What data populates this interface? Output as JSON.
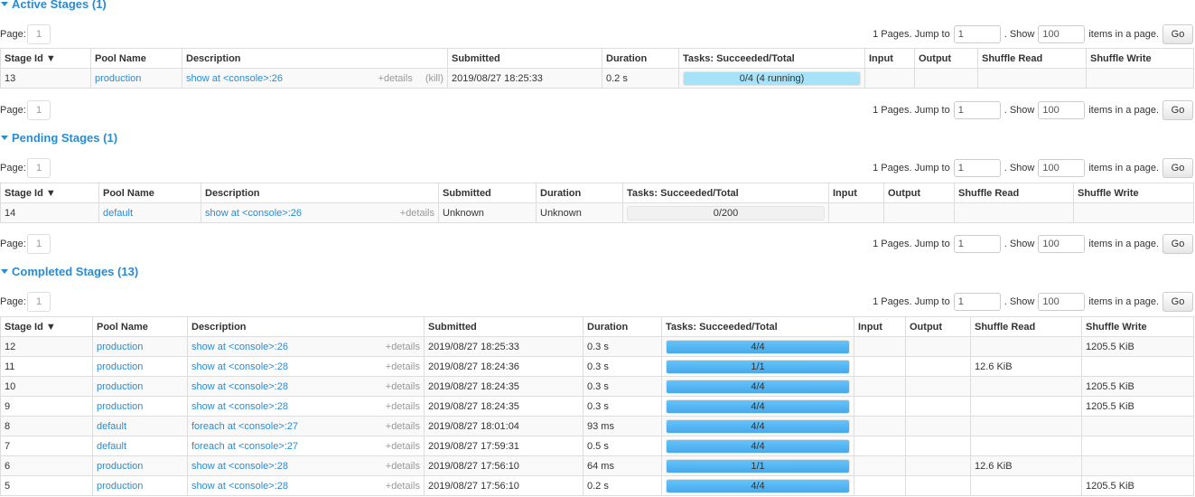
{
  "pager": {
    "page_label": "Page:",
    "page": "1",
    "pages_text": "1 Pages. Jump to",
    "jump": "1",
    "show_text": ". Show",
    "show": "100",
    "items_text": "items in a page.",
    "go": "Go"
  },
  "colors": {
    "link": "#2a8bd1",
    "bar_complete": "#4aa8ea",
    "bar_running": "#a6e3f8"
  },
  "columns": [
    "Stage Id ▼",
    "Pool Name",
    "Description",
    "Submitted",
    "Duration",
    "Tasks: Succeeded/Total",
    "Input",
    "Output",
    "Shuffle Read",
    "Shuffle Write"
  ],
  "details_label": "+details",
  "kill_label": "(kill)",
  "sections": [
    {
      "title": "Active Stages (1)",
      "rows": [
        {
          "id": "13",
          "pool": "production",
          "desc": "show at <console>:26",
          "kill": true,
          "submitted": "2019/08/27 18:25:33",
          "duration": "0.2 s",
          "tasks": "0/4 (4 running)",
          "succeeded": 0,
          "running": 4,
          "total": 4,
          "input": "",
          "output": "",
          "shuffle_read": "",
          "shuffle_write": ""
        }
      ]
    },
    {
      "title": "Pending Stages (1)",
      "rows": [
        {
          "id": "14",
          "pool": "default",
          "desc": "show at <console>:26",
          "submitted": "Unknown",
          "duration": "Unknown",
          "tasks": "0/200",
          "succeeded": 0,
          "running": 0,
          "total": 200,
          "input": "",
          "output": "",
          "shuffle_read": "",
          "shuffle_write": ""
        }
      ]
    },
    {
      "title": "Completed Stages (13)",
      "rows": [
        {
          "id": "12",
          "pool": "production",
          "desc": "show at <console>:26",
          "submitted": "2019/08/27 18:25:33",
          "duration": "0.3 s",
          "tasks": "4/4",
          "succeeded": 4,
          "running": 0,
          "total": 4,
          "input": "",
          "output": "",
          "shuffle_read": "",
          "shuffle_write": "1205.5 KiB"
        },
        {
          "id": "11",
          "pool": "production",
          "desc": "show at <console>:28",
          "submitted": "2019/08/27 18:24:36",
          "duration": "0.3 s",
          "tasks": "1/1",
          "succeeded": 1,
          "running": 0,
          "total": 1,
          "input": "",
          "output": "",
          "shuffle_read": "12.6 KiB",
          "shuffle_write": ""
        },
        {
          "id": "10",
          "pool": "production",
          "desc": "show at <console>:28",
          "submitted": "2019/08/27 18:24:35",
          "duration": "0.3 s",
          "tasks": "4/4",
          "succeeded": 4,
          "running": 0,
          "total": 4,
          "input": "",
          "output": "",
          "shuffle_read": "",
          "shuffle_write": "1205.5 KiB"
        },
        {
          "id": "9",
          "pool": "production",
          "desc": "show at <console>:28",
          "submitted": "2019/08/27 18:24:35",
          "duration": "0.3 s",
          "tasks": "4/4",
          "succeeded": 4,
          "running": 0,
          "total": 4,
          "input": "",
          "output": "",
          "shuffle_read": "",
          "shuffle_write": "1205.5 KiB"
        },
        {
          "id": "8",
          "pool": "default",
          "desc": "foreach at <console>:27",
          "submitted": "2019/08/27 18:01:04",
          "duration": "93 ms",
          "tasks": "4/4",
          "succeeded": 4,
          "running": 0,
          "total": 4,
          "input": "",
          "output": "",
          "shuffle_read": "",
          "shuffle_write": ""
        },
        {
          "id": "7",
          "pool": "default",
          "desc": "foreach at <console>:27",
          "submitted": "2019/08/27 17:59:31",
          "duration": "0.5 s",
          "tasks": "4/4",
          "succeeded": 4,
          "running": 0,
          "total": 4,
          "input": "",
          "output": "",
          "shuffle_read": "",
          "shuffle_write": ""
        },
        {
          "id": "6",
          "pool": "production",
          "desc": "show at <console>:28",
          "submitted": "2019/08/27 17:56:10",
          "duration": "64 ms",
          "tasks": "1/1",
          "succeeded": 1,
          "running": 0,
          "total": 1,
          "input": "",
          "output": "",
          "shuffle_read": "12.6 KiB",
          "shuffle_write": ""
        },
        {
          "id": "5",
          "pool": "production",
          "desc": "show at <console>:28",
          "submitted": "2019/08/27 17:56:10",
          "duration": "0.2 s",
          "tasks": "4/4",
          "succeeded": 4,
          "running": 0,
          "total": 4,
          "input": "",
          "output": "",
          "shuffle_read": "",
          "shuffle_write": "1205.5 KiB"
        }
      ]
    }
  ]
}
